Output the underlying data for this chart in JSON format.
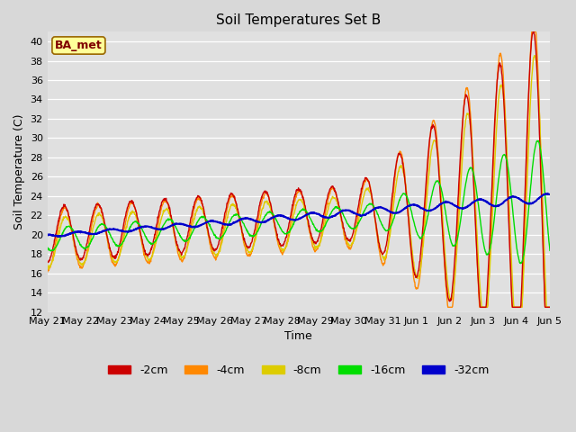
{
  "title": "Soil Temperatures Set B",
  "xlabel": "Time",
  "ylabel": "Soil Temperature (C)",
  "ylim": [
    12,
    41
  ],
  "yticks": [
    12,
    14,
    16,
    18,
    20,
    22,
    24,
    26,
    28,
    30,
    32,
    34,
    36,
    38,
    40
  ],
  "bg_color": "#d8d8d8",
  "plot_bg_color": "#e0e0e0",
  "annotation_text": "BA_met",
  "annotation_bg": "#ffff99",
  "annotation_border": "#996600",
  "annotation_text_color": "#800000",
  "series_colors": {
    "-2cm": "#cc0000",
    "-4cm": "#ff8800",
    "-8cm": "#ddcc00",
    "-16cm": "#00dd00",
    "-32cm": "#0000cc"
  },
  "tick_labels": [
    "May 21",
    "May 22",
    "May 23",
    "May 24",
    "May 25",
    "May 26",
    "May 27",
    "May 28",
    "May 29",
    "May 30",
    "May 31",
    "Jun 1",
    "Jun 2",
    "Jun 3",
    "Jun 4",
    "Jun 5"
  ]
}
